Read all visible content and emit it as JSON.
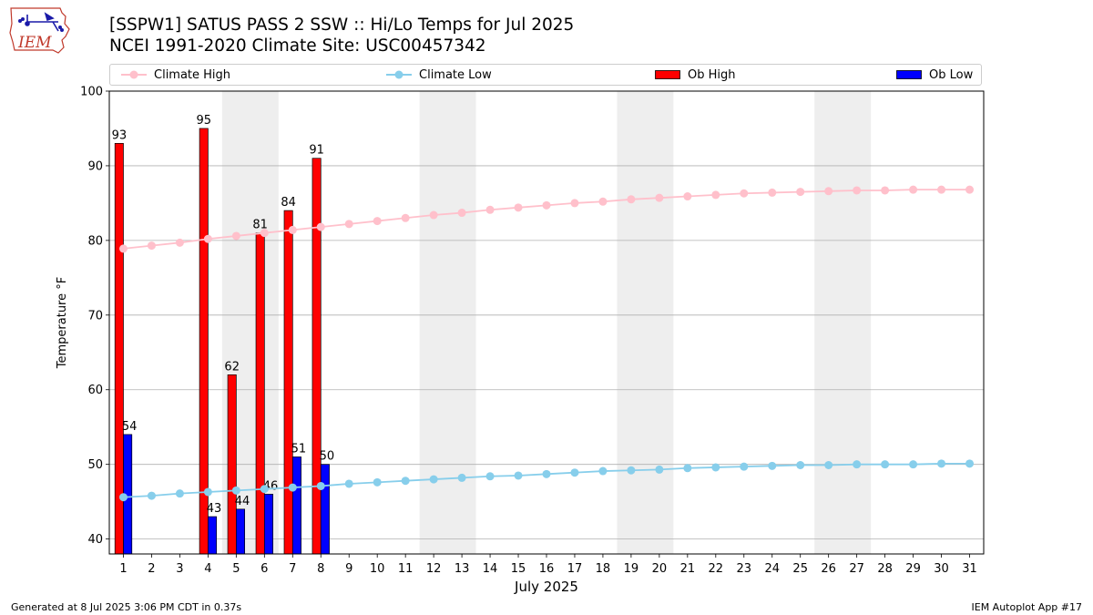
{
  "header": {
    "title_line1": "[SSPW1] SATUS PASS 2 SSW :: Hi/Lo Temps for Jul 2025",
    "title_line2": "NCEI 1991-2020 Climate Site: USC00457342",
    "logo_text": "IEM"
  },
  "legend": {
    "climate_high": "Climate High",
    "climate_low": "Climate Low",
    "ob_high": "Ob High",
    "ob_low": "Ob Low"
  },
  "footer": {
    "left": "Generated at 8 Jul 2025 3:06 PM CDT in 0.37s",
    "right": "IEM Autoplot App #17"
  },
  "colors": {
    "climate_high": "#ffc0cb",
    "climate_low": "#87ceeb",
    "ob_high": "#ff0000",
    "ob_low": "#0000ff",
    "weekend_band": "#eeeeee",
    "grid": "#b0b0b0"
  },
  "chart_data": {
    "type": "bar",
    "title": "[SSPW1] SATUS PASS 2 SSW :: Hi/Lo Temps for Jul 2025",
    "subtitle": "NCEI 1991-2020 Climate Site: USC00457342",
    "xlabel": "July 2025",
    "ylabel": "Temperature °F",
    "ylim": [
      38,
      100
    ],
    "yticks": [
      40,
      50,
      60,
      70,
      80,
      90,
      100
    ],
    "grid": true,
    "legend_position": "top",
    "days": [
      1,
      2,
      3,
      4,
      5,
      6,
      7,
      8,
      9,
      10,
      11,
      12,
      13,
      14,
      15,
      16,
      17,
      18,
      19,
      20,
      21,
      22,
      23,
      24,
      25,
      26,
      27,
      28,
      29,
      30,
      31
    ],
    "weekend_bands": [
      [
        5,
        6
      ],
      [
        12,
        13
      ],
      [
        19,
        20
      ],
      [
        26,
        27
      ]
    ],
    "series": [
      {
        "name": "Climate High",
        "kind": "line",
        "values": [
          78.9,
          79.3,
          79.7,
          80.2,
          80.6,
          81.0,
          81.4,
          81.8,
          82.2,
          82.6,
          83.0,
          83.4,
          83.7,
          84.1,
          84.4,
          84.7,
          85.0,
          85.2,
          85.5,
          85.7,
          85.9,
          86.1,
          86.3,
          86.4,
          86.5,
          86.6,
          86.7,
          86.7,
          86.8,
          86.8,
          86.8
        ]
      },
      {
        "name": "Climate Low",
        "kind": "line",
        "values": [
          45.6,
          45.8,
          46.1,
          46.3,
          46.5,
          46.7,
          46.9,
          47.1,
          47.4,
          47.6,
          47.8,
          48.0,
          48.2,
          48.4,
          48.5,
          48.7,
          48.9,
          49.1,
          49.2,
          49.3,
          49.5,
          49.6,
          49.7,
          49.8,
          49.9,
          49.9,
          50.0,
          50.0,
          50.0,
          50.1,
          50.1
        ]
      },
      {
        "name": "Ob High",
        "kind": "bar",
        "values": [
          93,
          null,
          null,
          95,
          62,
          81,
          84,
          91,
          null,
          null,
          null,
          null,
          null,
          null,
          null,
          null,
          null,
          null,
          null,
          null,
          null,
          null,
          null,
          null,
          null,
          null,
          null,
          null,
          null,
          null,
          null
        ]
      },
      {
        "name": "Ob Low",
        "kind": "bar",
        "values": [
          54,
          null,
          null,
          43,
          44,
          46,
          51,
          50,
          null,
          null,
          null,
          null,
          null,
          null,
          null,
          null,
          null,
          null,
          null,
          null,
          null,
          null,
          null,
          null,
          null,
          null,
          null,
          null,
          null,
          null,
          null
        ]
      }
    ]
  }
}
